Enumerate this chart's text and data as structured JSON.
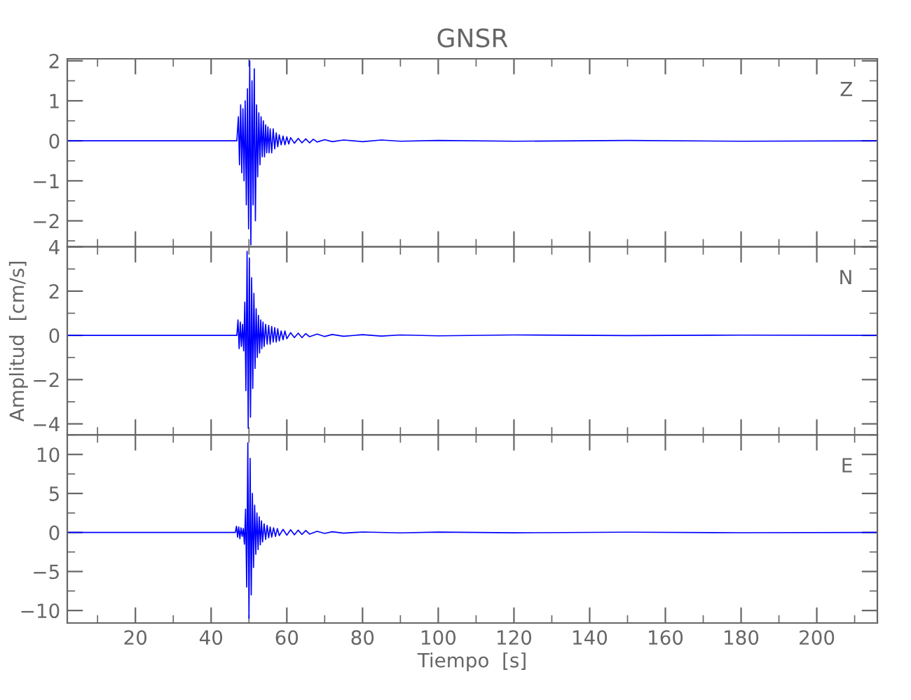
{
  "chart_data": [
    {
      "type": "line",
      "title": "GNSR",
      "annotations": [
        "Z"
      ],
      "tick_labels": "y",
      "grid": false,
      "legend": false,
      "marker": "none",
      "line_style": "solid",
      "xlim": [
        2,
        216
      ],
      "ylim": [
        -2.65,
        2.05
      ],
      "xticks": [
        {
          "value": 10,
          "label": null
        },
        20,
        {
          "value": 30,
          "label": null
        },
        40,
        {
          "value": 50,
          "label": null
        },
        60,
        {
          "value": 70,
          "label": null
        },
        80,
        {
          "value": 90,
          "label": null
        },
        100,
        {
          "value": 110,
          "label": null
        },
        120,
        {
          "value": 130,
          "label": null
        },
        140,
        {
          "value": 150,
          "label": null
        },
        160,
        {
          "value": 170,
          "label": null
        },
        180,
        {
          "value": 190,
          "label": null
        },
        200,
        {
          "value": 210,
          "label": null
        }
      ],
      "yticks": [
        {
          "value": -2.5,
          "label": null
        },
        {
          "value": -2,
          "label": "−2"
        },
        {
          "value": -1.5,
          "label": null
        },
        {
          "value": -1,
          "label": "−1"
        },
        {
          "value": -0.5,
          "label": null
        },
        0,
        {
          "value": 0.5,
          "label": null
        },
        1,
        {
          "value": 1.5,
          "label": null
        },
        2
      ],
      "series": [
        {
          "color": "#0000ff",
          "x": [
            2,
            46.8,
            47.2,
            47.5,
            47.8,
            48.1,
            48.4,
            48.7,
            49.0,
            49.3,
            49.6,
            49.9,
            50.2,
            50.5,
            50.8,
            51.1,
            51.4,
            51.7,
            52.0,
            52.3,
            52.6,
            52.9,
            53.2,
            53.5,
            53.8,
            54.1,
            54.4,
            54.7,
            55.0,
            55.3,
            55.6,
            56.0,
            56.4,
            56.8,
            57.2,
            57.6,
            58.0,
            58.5,
            59.0,
            59.5,
            60.0,
            60.5,
            61.0,
            62.0,
            63.0,
            64.0,
            65.0,
            66.0,
            67.0,
            68.0,
            70.0,
            72.0,
            75.0,
            80.0,
            85.0,
            90.0,
            100.0,
            120.0,
            150.0,
            180.0,
            216
          ],
          "values": [
            0,
            0,
            0.6,
            -0.6,
            0.9,
            -0.8,
            0.8,
            -1.0,
            1.0,
            -1.6,
            1.3,
            -2.2,
            2.0,
            -2.6,
            1.5,
            -1.6,
            1.8,
            -2.0,
            0.9,
            -0.9,
            0.7,
            -0.6,
            0.6,
            -0.4,
            0.5,
            -0.4,
            0.4,
            -0.3,
            0.35,
            -0.3,
            0.3,
            -0.3,
            0.3,
            -0.2,
            0.2,
            -0.15,
            0.15,
            -0.1,
            0.12,
            -0.1,
            0.1,
            -0.08,
            0.08,
            -0.06,
            0.06,
            -0.05,
            0.05,
            -0.05,
            0.04,
            -0.03,
            0.03,
            -0.02,
            0.02,
            -0.02,
            0.02,
            -0.01,
            0.01,
            -0.01,
            0.01,
            -0.01,
            0
          ]
        }
      ]
    },
    {
      "type": "line",
      "ylabel": "Amplitud  [cm/s]",
      "annotations": [
        "N"
      ],
      "tick_labels": "y",
      "grid": false,
      "legend": false,
      "marker": "none",
      "line_style": "solid",
      "xlim": [
        2,
        216
      ],
      "ylim": [
        -4.5,
        4
      ],
      "xticks": [
        {
          "value": 10,
          "label": null
        },
        20,
        {
          "value": 30,
          "label": null
        },
        40,
        {
          "value": 50,
          "label": null
        },
        60,
        {
          "value": 70,
          "label": null
        },
        80,
        {
          "value": 90,
          "label": null
        },
        100,
        {
          "value": 110,
          "label": null
        },
        120,
        {
          "value": 130,
          "label": null
        },
        140,
        {
          "value": 150,
          "label": null
        },
        160,
        {
          "value": 170,
          "label": null
        },
        180,
        {
          "value": 190,
          "label": null
        },
        200,
        {
          "value": 210,
          "label": null
        }
      ],
      "yticks": [
        {
          "value": -4,
          "label": "−4"
        },
        {
          "value": -3,
          "label": null
        },
        {
          "value": -2,
          "label": "−2"
        },
        {
          "value": -1,
          "label": null
        },
        0,
        {
          "value": 1,
          "label": null
        },
        2,
        {
          "value": 3,
          "label": null
        },
        4
      ],
      "series": [
        {
          "color": "#0000ff",
          "x": [
            2,
            46.8,
            47.1,
            47.4,
            47.7,
            48.0,
            48.3,
            48.6,
            48.9,
            49.2,
            49.5,
            49.8,
            50.1,
            50.4,
            50.7,
            51.0,
            51.3,
            51.6,
            51.9,
            52.2,
            52.5,
            52.8,
            53.1,
            53.4,
            53.7,
            54.0,
            54.4,
            54.8,
            55.2,
            55.6,
            56.0,
            56.4,
            56.8,
            57.2,
            57.6,
            58.0,
            58.5,
            59.0,
            59.5,
            60.0,
            61.0,
            62.0,
            63.0,
            64.0,
            65.0,
            66.0,
            68.0,
            70.0,
            72.0,
            75.0,
            80.0,
            85.0,
            90.0,
            100.0,
            120.0,
            150.0,
            180.0,
            216
          ],
          "values": [
            0,
            0,
            0.7,
            -0.6,
            0.6,
            -0.5,
            0.5,
            -0.7,
            1.5,
            -2.5,
            3.8,
            -4.2,
            3.5,
            -3.7,
            2.6,
            -2.4,
            1.9,
            -1.5,
            1.2,
            -1.0,
            0.9,
            -0.8,
            0.7,
            -0.6,
            0.6,
            -0.5,
            0.5,
            -0.4,
            0.45,
            -0.4,
            0.4,
            -0.3,
            0.35,
            -0.3,
            0.3,
            -0.25,
            0.2,
            -0.2,
            0.2,
            -0.15,
            0.12,
            -0.1,
            0.1,
            -0.1,
            0.08,
            -0.06,
            0.06,
            -0.05,
            0.04,
            -0.04,
            0.03,
            -0.03,
            0.02,
            -0.02,
            0.02,
            -0.01,
            0.01,
            0
          ]
        }
      ]
    },
    {
      "type": "line",
      "xlabel": "Tiempo  [s]",
      "annotations": [
        "E"
      ],
      "grid": false,
      "legend": false,
      "marker": "none",
      "line_style": "solid",
      "xlim": [
        2,
        216
      ],
      "ylim": [
        -11.6,
        12.5
      ],
      "xticks": [
        {
          "value": 10,
          "label": null
        },
        20,
        {
          "value": 30,
          "label": null
        },
        40,
        {
          "value": 50,
          "label": null
        },
        60,
        {
          "value": 70,
          "label": null
        },
        80,
        {
          "value": 90,
          "label": null
        },
        100,
        {
          "value": 110,
          "label": null
        },
        120,
        {
          "value": 130,
          "label": null
        },
        140,
        {
          "value": 150,
          "label": null
        },
        160,
        {
          "value": 170,
          "label": null
        },
        180,
        {
          "value": 190,
          "label": null
        },
        200,
        {
          "value": 210,
          "label": null
        }
      ],
      "yticks": [
        {
          "value": -10,
          "label": "−10"
        },
        {
          "value": -7.5,
          "label": null
        },
        {
          "value": -5,
          "label": "−5"
        },
        {
          "value": -2.5,
          "label": null
        },
        0,
        {
          "value": 2.5,
          "label": null
        },
        5,
        {
          "value": 7.5,
          "label": null
        },
        10,
        {
          "value": 12.5,
          "label": null
        }
      ],
      "series": [
        {
          "color": "#0000ff",
          "x": [
            2,
            46.4,
            46.7,
            47.0,
            47.3,
            47.6,
            47.9,
            48.2,
            48.5,
            48.8,
            49.1,
            49.4,
            49.7,
            50.0,
            50.3,
            50.6,
            50.9,
            51.2,
            51.5,
            51.8,
            52.1,
            52.4,
            52.7,
            53.0,
            53.3,
            53.6,
            54.0,
            54.4,
            54.8,
            55.2,
            55.6,
            56.0,
            56.5,
            57.0,
            57.5,
            58.0,
            59.0,
            60.0,
            61.0,
            62.0,
            63.0,
            64.0,
            65.0,
            66.0,
            68.0,
            70.0,
            72.0,
            75.0,
            80.0,
            90.0,
            100.0,
            120.0,
            150.0,
            180.0,
            216
          ],
          "values": [
            0,
            0,
            0.8,
            -0.6,
            0.7,
            -0.8,
            0.6,
            -0.5,
            0.5,
            -1.5,
            3.0,
            -7.0,
            11.5,
            -11.0,
            9.5,
            -8.0,
            5.0,
            -4.5,
            3.5,
            -2.8,
            2.5,
            -2.2,
            2.0,
            -1.6,
            1.5,
            -1.2,
            1.1,
            -0.9,
            0.9,
            -0.7,
            0.7,
            -0.6,
            0.6,
            -0.5,
            0.5,
            -0.4,
            0.4,
            -0.35,
            0.35,
            -0.3,
            0.3,
            -0.25,
            0.25,
            -0.2,
            0.15,
            -0.12,
            0.1,
            -0.08,
            0.06,
            -0.05,
            0.05,
            -0.04,
            0.04,
            -0.03,
            0
          ]
        }
      ]
    }
  ]
}
